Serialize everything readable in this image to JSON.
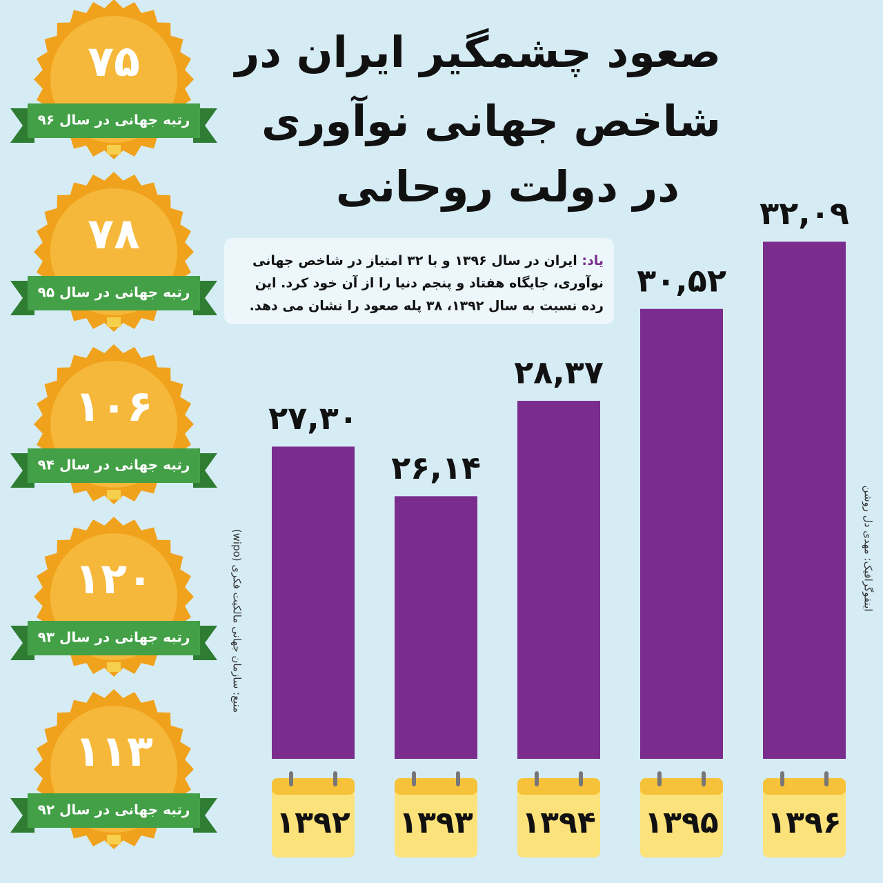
{
  "chart_data": {
    "type": "bar",
    "title": [
      "صعود چشمگیر ایران در",
      "شاخص جهانی نوآوری",
      "در دولت روحانی"
    ],
    "categories": [
      "۱۳۹۲",
      "۱۳۹۳",
      "۱۳۹۴",
      "۱۳۹۵",
      "۱۳۹۶"
    ],
    "values": [
      27.3,
      26.14,
      28.37,
      30.52,
      32.09
    ],
    "value_labels": [
      "۲۷,۳۰",
      "۲۶,۱۴",
      "۲۸,۳۷",
      "۳۰,۵۲",
      "۳۲,۰۹"
    ],
    "color": "#7b2d8e",
    "ylim": [
      20,
      33
    ]
  },
  "note": {
    "label": "یاد:",
    "lines": [
      "ایران در سال ۱۳۹۶ و با ۳۲ امتیاز در شاخص جهانی",
      "نوآوری، جایگاه هفتاد و پنجم دنیا را از آن خود کرد. این",
      "رده نسبت به سال ۱۳۹۲، ۳۸ پله صعود را نشان می دهد."
    ]
  },
  "badges": [
    {
      "rank": "۷۵",
      "caption": "رتبه جهانی در سال ۹۶"
    },
    {
      "rank": "۷۸",
      "caption": "رتبه جهانی در سال ۹۵"
    },
    {
      "rank": "۱۰۶",
      "caption": "رتبه جهانی در سال ۹۴"
    },
    {
      "rank": "۱۲۰",
      "caption": "رتبه جهانی در سال ۹۳"
    },
    {
      "rank": "۱۱۳",
      "caption": "رتبه جهانی در سال ۹۲"
    }
  ],
  "source": "منبع: سازمان جهانی مالکیت فکری (wipo)",
  "credit": "اینفوگرافیک: مهدی دل روشن"
}
